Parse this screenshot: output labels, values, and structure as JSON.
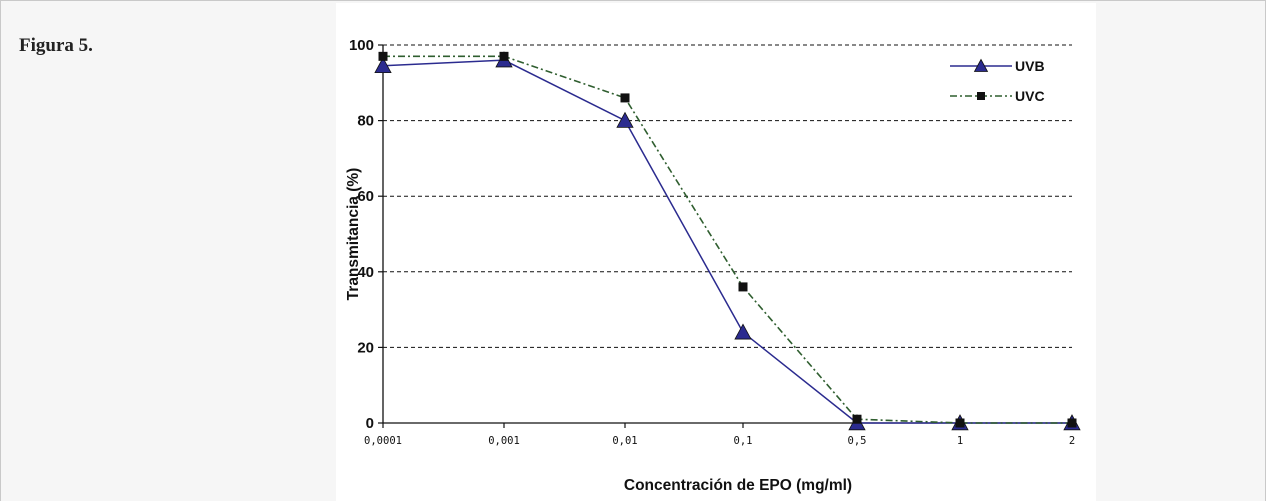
{
  "figure": {
    "label": "Figura 5."
  },
  "colors": {
    "uvb": "#2b2b8f",
    "uvc": "#2f5e2f",
    "grid": "#111111",
    "plot_bg": "#ffffff"
  },
  "chart_data": {
    "type": "line",
    "xlabel": "Concentración de EPO (mg/ml)",
    "ylabel": "Transmitancia (%)",
    "ylim": [
      0,
      100
    ],
    "yticks": [
      "0",
      "20",
      "40",
      "60",
      "80",
      "100"
    ],
    "categories": [
      "0,0001",
      "0,001",
      "0,01",
      "0,1",
      "0,5",
      "1",
      "2"
    ],
    "grid": "horizontal dashed",
    "legend_position": "top-right",
    "series": [
      {
        "name": "UVB",
        "marker": "triangle",
        "line": "solid",
        "values": [
          94.5,
          96,
          80,
          24,
          0,
          0,
          0
        ]
      },
      {
        "name": "UVC",
        "marker": "square",
        "line": "dash-dot",
        "values": [
          97,
          97,
          86,
          36,
          1,
          0,
          0
        ]
      }
    ]
  }
}
